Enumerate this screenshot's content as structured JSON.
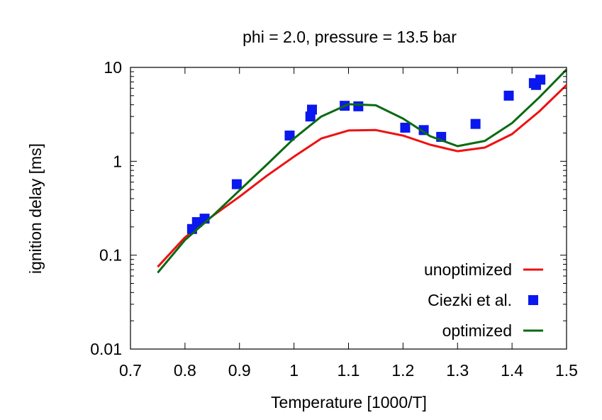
{
  "chart_data": {
    "type": "line",
    "title": "phi = 2.0, pressure = 13.5 bar",
    "xlabel": "Temperature [1000/T]",
    "ylabel": "ignition delay [ms]",
    "xlim": [
      0.7,
      1.5
    ],
    "ylim": [
      0.01,
      10
    ],
    "yscale": "log",
    "grid": false,
    "legend_position": "bottom-right",
    "xticks": [
      "0.7",
      "0.8",
      "0.9",
      "1",
      "1.1",
      "1.2",
      "1.3",
      "1.4",
      "1.5"
    ],
    "yticks": [
      "0.01",
      "0.1",
      "1",
      "10"
    ],
    "series": [
      {
        "name": "unoptimized",
        "kind": "line",
        "color": "#ee1111",
        "x": [
          0.75,
          0.8,
          0.85,
          0.9,
          0.95,
          1.0,
          1.05,
          1.1,
          1.15,
          1.2,
          1.25,
          1.3,
          1.35,
          1.4,
          1.45,
          1.5
        ],
        "y": [
          0.075,
          0.155,
          0.26,
          0.42,
          0.7,
          1.12,
          1.75,
          2.13,
          2.15,
          1.88,
          1.5,
          1.28,
          1.4,
          1.95,
          3.4,
          6.5
        ]
      },
      {
        "name": "Ciezki et al.",
        "kind": "scatter",
        "color": "#0a17ee",
        "x": [
          0.813,
          0.822,
          0.836,
          0.895,
          0.992,
          1.03,
          1.033,
          1.093,
          1.118,
          1.204,
          1.238,
          1.27,
          1.333,
          1.394,
          1.44,
          1.444,
          1.452
        ],
        "y": [
          0.19,
          0.225,
          0.245,
          0.57,
          1.88,
          3.0,
          3.55,
          3.9,
          3.85,
          2.28,
          2.15,
          1.82,
          2.5,
          5.0,
          6.8,
          6.5,
          7.4
        ]
      },
      {
        "name": "optimized",
        "kind": "line",
        "color": "#0a6a12",
        "x": [
          0.75,
          0.8,
          0.85,
          0.9,
          0.95,
          1.0,
          1.05,
          1.1,
          1.15,
          1.2,
          1.25,
          1.3,
          1.35,
          1.4,
          1.45,
          1.5
        ],
        "y": [
          0.065,
          0.145,
          0.26,
          0.49,
          0.92,
          1.75,
          3.0,
          4.05,
          3.95,
          2.85,
          1.85,
          1.45,
          1.65,
          2.55,
          4.8,
          9.5
        ]
      }
    ]
  }
}
